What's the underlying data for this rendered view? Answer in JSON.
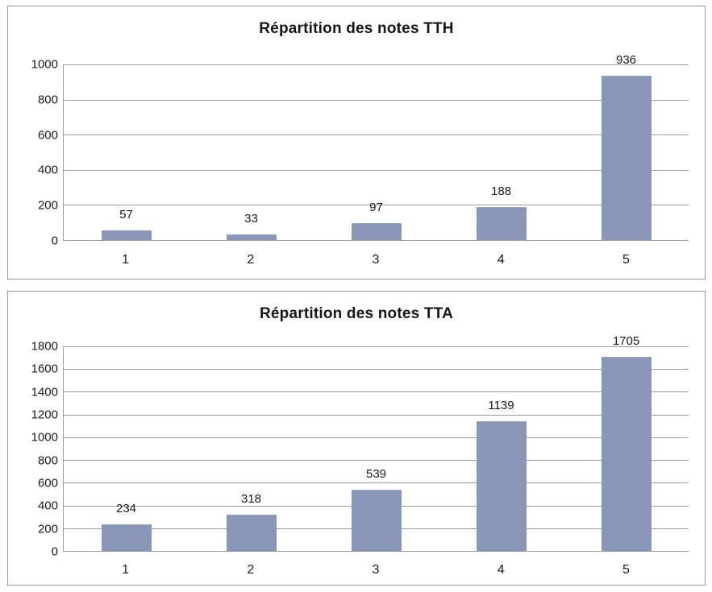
{
  "page": {
    "background": "#ffffff"
  },
  "colors": {
    "bar_fill": "#8a96b8",
    "bar_top_edge": "#9aa4c2",
    "gridline": "#9a9a9a",
    "axis_line": "#9a9a9a",
    "panel_border": "#979797",
    "text": "#1a1a1a"
  },
  "chart_data": [
    {
      "type": "bar",
      "title": "Répartition des notes TTH",
      "categories": [
        "1",
        "2",
        "3",
        "4",
        "5"
      ],
      "values": [
        57,
        33,
        97,
        188,
        936
      ],
      "data_labels": [
        "57",
        "33",
        "97",
        "188",
        "936"
      ],
      "xlabel": "",
      "ylabel": "",
      "ylim": [
        0,
        1000
      ],
      "ytick_step": 200,
      "yticks": [
        0,
        200,
        400,
        600,
        800,
        1000
      ],
      "grid": true,
      "legend": false
    },
    {
      "type": "bar",
      "title": "Répartition des notes TTA",
      "categories": [
        "1",
        "2",
        "3",
        "4",
        "5"
      ],
      "values": [
        234,
        318,
        539,
        1139,
        1705
      ],
      "data_labels": [
        "234",
        "318",
        "539",
        "1139",
        "1705"
      ],
      "xlabel": "",
      "ylabel": "",
      "ylim": [
        0,
        1800
      ],
      "ytick_step": 200,
      "yticks": [
        0,
        200,
        400,
        600,
        800,
        1000,
        1200,
        1400,
        1600,
        1800
      ],
      "grid": true,
      "legend": false
    }
  ]
}
